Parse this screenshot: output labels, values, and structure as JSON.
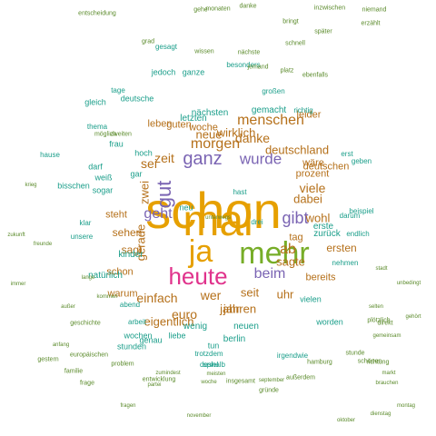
{
  "palette": {
    "orange": "#e6a000",
    "magenta": "#e0338c",
    "purple": "#7a64b3",
    "green": "#77ad28",
    "blue": "#2f7fb8",
    "teal": "#1a9e8a",
    "brown": "#b5701a",
    "olive": "#5a8a2a"
  },
  "words": [
    {
      "t": "schon",
      "c": "orange",
      "s": 56
    },
    {
      "t": "mal",
      "c": "orange",
      "s": 48
    },
    {
      "t": "ja",
      "c": "orange",
      "s": 34
    },
    {
      "t": "mehr",
      "c": "green",
      "s": 34
    },
    {
      "t": "heute",
      "c": "magenta",
      "s": 26
    },
    {
      "t": "gut",
      "c": "purple",
      "s": 22,
      "v": true
    },
    {
      "t": "ganz",
      "c": "purple",
      "s": 20
    },
    {
      "t": "wurde",
      "c": "purple",
      "s": 17
    },
    {
      "t": "geht",
      "c": "purple",
      "s": 16
    },
    {
      "t": "gibt",
      "c": "purple",
      "s": 18
    },
    {
      "t": "beim",
      "c": "purple",
      "s": 16
    },
    {
      "t": "zeit",
      "c": "brown",
      "s": 14
    },
    {
      "t": "neue",
      "c": "brown",
      "s": 13
    },
    {
      "t": "morgen",
      "c": "brown",
      "s": 16
    },
    {
      "t": "menschen",
      "c": "brown",
      "s": 16
    },
    {
      "t": "sei",
      "c": "brown",
      "s": 14
    },
    {
      "t": "danke",
      "c": "brown",
      "s": 14
    },
    {
      "t": "wirklich",
      "c": "brown",
      "s": 13
    },
    {
      "t": "deutschland",
      "c": "brown",
      "s": 13
    },
    {
      "t": "viele",
      "c": "brown",
      "s": 14
    },
    {
      "t": "dabei",
      "c": "brown",
      "s": 13
    },
    {
      "t": "wohl",
      "c": "brown",
      "s": 13
    },
    {
      "t": "euro",
      "c": "brown",
      "s": 14
    },
    {
      "t": "ab",
      "c": "brown",
      "s": 16
    },
    {
      "t": "sagte",
      "c": "brown",
      "s": 13
    },
    {
      "t": "einfach",
      "c": "brown",
      "s": 14
    },
    {
      "t": "wer",
      "c": "brown",
      "s": 14
    },
    {
      "t": "seit",
      "c": "brown",
      "s": 13
    },
    {
      "t": "uhr",
      "c": "brown",
      "s": 13
    },
    {
      "t": "eigentlich",
      "c": "brown",
      "s": 13
    },
    {
      "t": "jahren",
      "c": "brown",
      "s": 13
    },
    {
      "t": "jahr",
      "c": "brown",
      "s": 13
    },
    {
      "t": "ersten",
      "c": "brown",
      "s": 12
    },
    {
      "t": "gerade",
      "c": "brown",
      "s": 13,
      "v": true
    },
    {
      "t": "zwei",
      "c": "brown",
      "s": 13,
      "v": true
    },
    {
      "t": "sagt",
      "c": "brown",
      "s": 12
    },
    {
      "t": "sehen",
      "c": "brown",
      "s": 12
    },
    {
      "t": "steht",
      "c": "brown",
      "s": 11
    },
    {
      "t": "schon",
      "c": "brown",
      "s": 11
    },
    {
      "t": "tag",
      "c": "brown",
      "s": 11
    },
    {
      "t": "bereits",
      "c": "brown",
      "s": 11
    },
    {
      "t": "prozent",
      "c": "brown",
      "s": 11
    },
    {
      "t": "wäre",
      "c": "brown",
      "s": 11
    },
    {
      "t": "deutschen",
      "c": "brown",
      "s": 11
    },
    {
      "t": "leider",
      "c": "brown",
      "s": 11
    },
    {
      "t": "leben",
      "c": "brown",
      "s": 11
    },
    {
      "t": "guten",
      "c": "brown",
      "s": 11
    },
    {
      "t": "woche",
      "c": "brown",
      "s": 11
    },
    {
      "t": "warum",
      "c": "brown",
      "s": 11
    },
    {
      "t": "neuen",
      "c": "teal",
      "s": 10
    },
    {
      "t": "berlin",
      "c": "teal",
      "s": 10
    },
    {
      "t": "wenig",
      "c": "teal",
      "s": 10
    },
    {
      "t": "gemacht",
      "c": "teal",
      "s": 10
    },
    {
      "t": "nächsten",
      "c": "teal",
      "s": 10
    },
    {
      "t": "letzten",
      "c": "teal",
      "s": 10
    },
    {
      "t": "natürlich",
      "c": "teal",
      "s": 10
    },
    {
      "t": "kinder",
      "c": "teal",
      "s": 10
    },
    {
      "t": "zurück",
      "c": "teal",
      "s": 10
    },
    {
      "t": "erste",
      "c": "teal",
      "s": 10
    },
    {
      "t": "wochen",
      "c": "teal",
      "s": 9
    },
    {
      "t": "stunden",
      "c": "teal",
      "s": 9
    },
    {
      "t": "vielen",
      "c": "teal",
      "s": 9
    },
    {
      "t": "worden",
      "c": "teal",
      "s": 9
    },
    {
      "t": "jedoch",
      "c": "teal",
      "s": 9
    },
    {
      "t": "ganze",
      "c": "teal",
      "s": 9
    },
    {
      "t": "neu",
      "c": "teal",
      "s": 9
    },
    {
      "t": "tun",
      "c": "teal",
      "s": 9
    },
    {
      "t": "frau",
      "c": "teal",
      "s": 9
    },
    {
      "t": "hoch",
      "c": "teal",
      "s": 9
    },
    {
      "t": "bisschen",
      "c": "teal",
      "s": 9
    },
    {
      "t": "darf",
      "c": "teal",
      "s": 9
    },
    {
      "t": "weiß",
      "c": "teal",
      "s": 9
    },
    {
      "t": "sogar",
      "c": "teal",
      "s": 9
    },
    {
      "t": "gar",
      "c": "teal",
      "s": 9
    },
    {
      "t": "gleich",
      "c": "teal",
      "s": 9
    },
    {
      "t": "deutsche",
      "c": "teal",
      "s": 9
    },
    {
      "t": "genau",
      "c": "teal",
      "s": 9
    },
    {
      "t": "liebe",
      "c": "teal",
      "s": 9
    },
    {
      "t": "gesagt",
      "c": "teal",
      "s": 8
    },
    {
      "t": "besonders",
      "c": "teal",
      "s": 8
    },
    {
      "t": "tage",
      "c": "teal",
      "s": 8
    },
    {
      "t": "thema",
      "c": "teal",
      "s": 8
    },
    {
      "t": "erst",
      "c": "teal",
      "s": 8
    },
    {
      "t": "spiel",
      "c": "teal",
      "s": 8
    },
    {
      "t": "hast",
      "c": "teal",
      "s": 8
    },
    {
      "t": "geben",
      "c": "teal",
      "s": 8
    },
    {
      "t": "darum",
      "c": "teal",
      "s": 8
    },
    {
      "t": "trotzdem",
      "c": "teal",
      "s": 8
    },
    {
      "t": "deshalb",
      "c": "teal",
      "s": 8
    },
    {
      "t": "irgendwie",
      "c": "teal",
      "s": 8
    },
    {
      "t": "beispiel",
      "c": "teal",
      "s": 8
    },
    {
      "t": "endlich",
      "c": "teal",
      "s": 8
    },
    {
      "t": "nehmen",
      "c": "teal",
      "s": 8
    },
    {
      "t": "drei",
      "c": "teal",
      "s": 8
    },
    {
      "t": "klar",
      "c": "teal",
      "s": 8
    },
    {
      "t": "abend",
      "c": "teal",
      "s": 8
    },
    {
      "t": "arbeit",
      "c": "teal",
      "s": 8
    },
    {
      "t": "großen",
      "c": "teal",
      "s": 8
    },
    {
      "t": "richtig",
      "c": "teal",
      "s": 8
    },
    {
      "t": "unsere",
      "c": "teal",
      "s": 8
    },
    {
      "t": "hause",
      "c": "teal",
      "s": 8
    },
    {
      "t": "inzwischen",
      "c": "olive",
      "s": 7
    },
    {
      "t": "niemand",
      "c": "olive",
      "s": 7
    },
    {
      "t": "erzählt",
      "c": "olive",
      "s": 7
    },
    {
      "t": "entscheidung",
      "c": "olive",
      "s": 7
    },
    {
      "t": "gehe",
      "c": "olive",
      "s": 7
    },
    {
      "t": "monaten",
      "c": "olive",
      "s": 7
    },
    {
      "t": "danke",
      "c": "olive",
      "s": 7
    },
    {
      "t": "bringt",
      "c": "olive",
      "s": 7
    },
    {
      "t": "später",
      "c": "olive",
      "s": 7
    },
    {
      "t": "jemand",
      "c": "olive",
      "s": 7
    },
    {
      "t": "platz",
      "c": "olive",
      "s": 7
    },
    {
      "t": "ebenfalls",
      "c": "olive",
      "s": 7
    },
    {
      "t": "nächste",
      "c": "olive",
      "s": 7
    },
    {
      "t": "schnell",
      "c": "olive",
      "s": 7
    },
    {
      "t": "wissen",
      "c": "olive",
      "s": 7
    },
    {
      "t": "grad",
      "c": "olive",
      "s": 7
    },
    {
      "t": "plötzlich",
      "c": "olive",
      "s": 7
    },
    {
      "t": "möglich",
      "c": "olive",
      "s": 7
    },
    {
      "t": "zweiten",
      "c": "olive",
      "s": 7
    },
    {
      "t": "geschichte",
      "c": "olive",
      "s": 7
    },
    {
      "t": "problem",
      "c": "olive",
      "s": 7
    },
    {
      "t": "gestern",
      "c": "olive",
      "s": 7
    },
    {
      "t": "familie",
      "c": "olive",
      "s": 7
    },
    {
      "t": "europäischen",
      "c": "olive",
      "s": 7
    },
    {
      "t": "entwicklung",
      "c": "olive",
      "s": 7
    },
    {
      "t": "insgesamt",
      "c": "olive",
      "s": 7
    },
    {
      "t": "außerdem",
      "c": "olive",
      "s": 7
    },
    {
      "t": "gründe",
      "c": "olive",
      "s": 7
    },
    {
      "t": "hamburg",
      "c": "olive",
      "s": 7
    },
    {
      "t": "stunde",
      "c": "olive",
      "s": 7
    },
    {
      "t": "schönen",
      "c": "olive",
      "s": 7
    },
    {
      "t": "direkt",
      "c": "olive",
      "s": 7
    },
    {
      "t": "richtung",
      "c": "olive",
      "s": 7
    },
    {
      "t": "frage",
      "c": "olive",
      "s": 7
    },
    {
      "t": "november",
      "c": "olive",
      "s": 6
    },
    {
      "t": "oktober",
      "c": "olive",
      "s": 6
    },
    {
      "t": "dienstag",
      "c": "olive",
      "s": 6
    },
    {
      "t": "brauchen",
      "c": "olive",
      "s": 6
    },
    {
      "t": "gemeinsam",
      "c": "olive",
      "s": 6
    },
    {
      "t": "montag",
      "c": "olive",
      "s": 6
    },
    {
      "t": "immer",
      "c": "olive",
      "s": 6
    },
    {
      "t": "zukunft",
      "c": "olive",
      "s": 6
    },
    {
      "t": "september",
      "c": "olive",
      "s": 6
    },
    {
      "t": "anfang",
      "c": "olive",
      "s": 6
    },
    {
      "t": "meisten",
      "c": "olive",
      "s": 6
    },
    {
      "t": "stadt",
      "c": "olive",
      "s": 6
    },
    {
      "t": "freunde",
      "c": "olive",
      "s": 6
    },
    {
      "t": "fragen",
      "c": "olive",
      "s": 6
    },
    {
      "t": "partei",
      "c": "olive",
      "s": 6
    },
    {
      "t": "woche",
      "c": "olive",
      "s": 6
    },
    {
      "t": "zumindest",
      "c": "olive",
      "s": 6
    },
    {
      "t": "gehört",
      "c": "olive",
      "s": 6
    },
    {
      "t": "unbedingt",
      "c": "olive",
      "s": 6
    },
    {
      "t": "außer",
      "c": "olive",
      "s": 6
    },
    {
      "t": "kommen",
      "c": "olive",
      "s": 6
    },
    {
      "t": "lange",
      "c": "olive",
      "s": 6
    },
    {
      "t": "krieg",
      "c": "olive",
      "s": 6
    },
    {
      "t": "selten",
      "c": "olive",
      "s": 6
    },
    {
      "t": "markt",
      "c": "olive",
      "s": 6
    },
    {
      "t": "unterwegs",
      "c": "olive",
      "s": 6
    }
  ]
}
